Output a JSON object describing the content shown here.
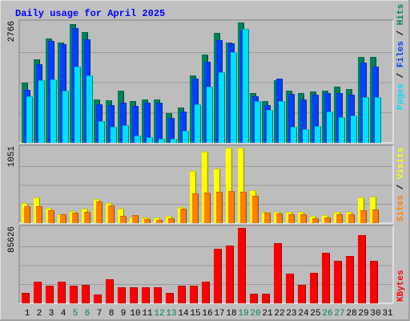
{
  "chart_data": {
    "type": "bar",
    "title": "Daily usage for April 2025",
    "categories": [
      "1",
      "2",
      "3",
      "4",
      "5",
      "6",
      "7",
      "8",
      "9",
      "10",
      "11",
      "12",
      "13",
      "14",
      "15",
      "16",
      "17",
      "18",
      "19",
      "20",
      "21",
      "22",
      "23",
      "24",
      "25",
      "26",
      "27",
      "28",
      "29",
      "30",
      "31"
    ],
    "weekend_days": [
      "5",
      "6",
      "12",
      "13",
      "19",
      "20",
      "26",
      "27"
    ],
    "hits_panel": {
      "ymax_label": "2766",
      "ymax": 2766,
      "series": [
        {
          "name": "Hits",
          "color": "#00805c",
          "values": [
            1390,
            1910,
            2390,
            2300,
            2720,
            2540,
            1000,
            980,
            1200,
            960,
            1000,
            1000,
            680,
            820,
            1540,
            2020,
            2520,
            2310,
            2766,
            1140,
            960,
            1440,
            1200,
            1140,
            1180,
            1190,
            1290,
            1230,
            1970,
            1970,
            0
          ]
        },
        {
          "name": "Files",
          "color": "#0040ff",
          "values": [
            1210,
            1800,
            2350,
            2260,
            2640,
            2380,
            880,
            860,
            930,
            840,
            920,
            920,
            580,
            720,
            1480,
            1870,
            2360,
            2280,
            2580,
            1070,
            860,
            1470,
            1120,
            1000,
            1110,
            1150,
            1150,
            1100,
            1850,
            1760,
            0
          ]
        },
        {
          "name": "Pages",
          "color": "#00e0ff",
          "values": [
            1070,
            1440,
            1450,
            1200,
            1760,
            1550,
            490,
            370,
            400,
            160,
            120,
            100,
            100,
            270,
            890,
            1300,
            1620,
            2080,
            2610,
            950,
            750,
            950,
            370,
            310,
            390,
            710,
            590,
            630,
            1060,
            1060,
            0
          ]
        }
      ]
    },
    "visits_panel": {
      "ymax_label": "1051",
      "ymax": 1051,
      "series": [
        {
          "name": "Visits",
          "color": "#ffff00",
          "values": [
            280,
            360,
            210,
            120,
            170,
            200,
            340,
            280,
            200,
            80,
            80,
            80,
            100,
            220,
            730,
            1000,
            760,
            1051,
            1051,
            460,
            160,
            160,
            160,
            160,
            100,
            110,
            160,
            160,
            360,
            370,
            0
          ]
        },
        {
          "name": "Sites",
          "color": "#ff8000",
          "values": [
            230,
            240,
            180,
            120,
            140,
            160,
            300,
            250,
            100,
            110,
            60,
            50,
            70,
            200,
            410,
            420,
            440,
            450,
            440,
            380,
            140,
            130,
            120,
            120,
            70,
            80,
            120,
            120,
            180,
            190,
            0
          ]
        }
      ]
    },
    "kbytes_panel": {
      "ymax_label": "85626",
      "ymax": 85626,
      "series": [
        {
          "name": "KBytes",
          "color": "#ff0000",
          "values": [
            12000,
            25000,
            20000,
            25000,
            20000,
            21000,
            10000,
            27000,
            18000,
            18000,
            18000,
            18000,
            12000,
            20000,
            20000,
            25000,
            62000,
            66000,
            85626,
            11000,
            11000,
            68000,
            34000,
            21000,
            35000,
            57000,
            48000,
            54000,
            77000,
            48000,
            0
          ]
        }
      ]
    },
    "right_labels": {
      "hits_files_pages": [
        "Pages",
        "Files",
        "Hits"
      ],
      "sites_visits": [
        "Sites",
        "Visits"
      ],
      "kbytes": [
        "KBytes"
      ]
    }
  }
}
